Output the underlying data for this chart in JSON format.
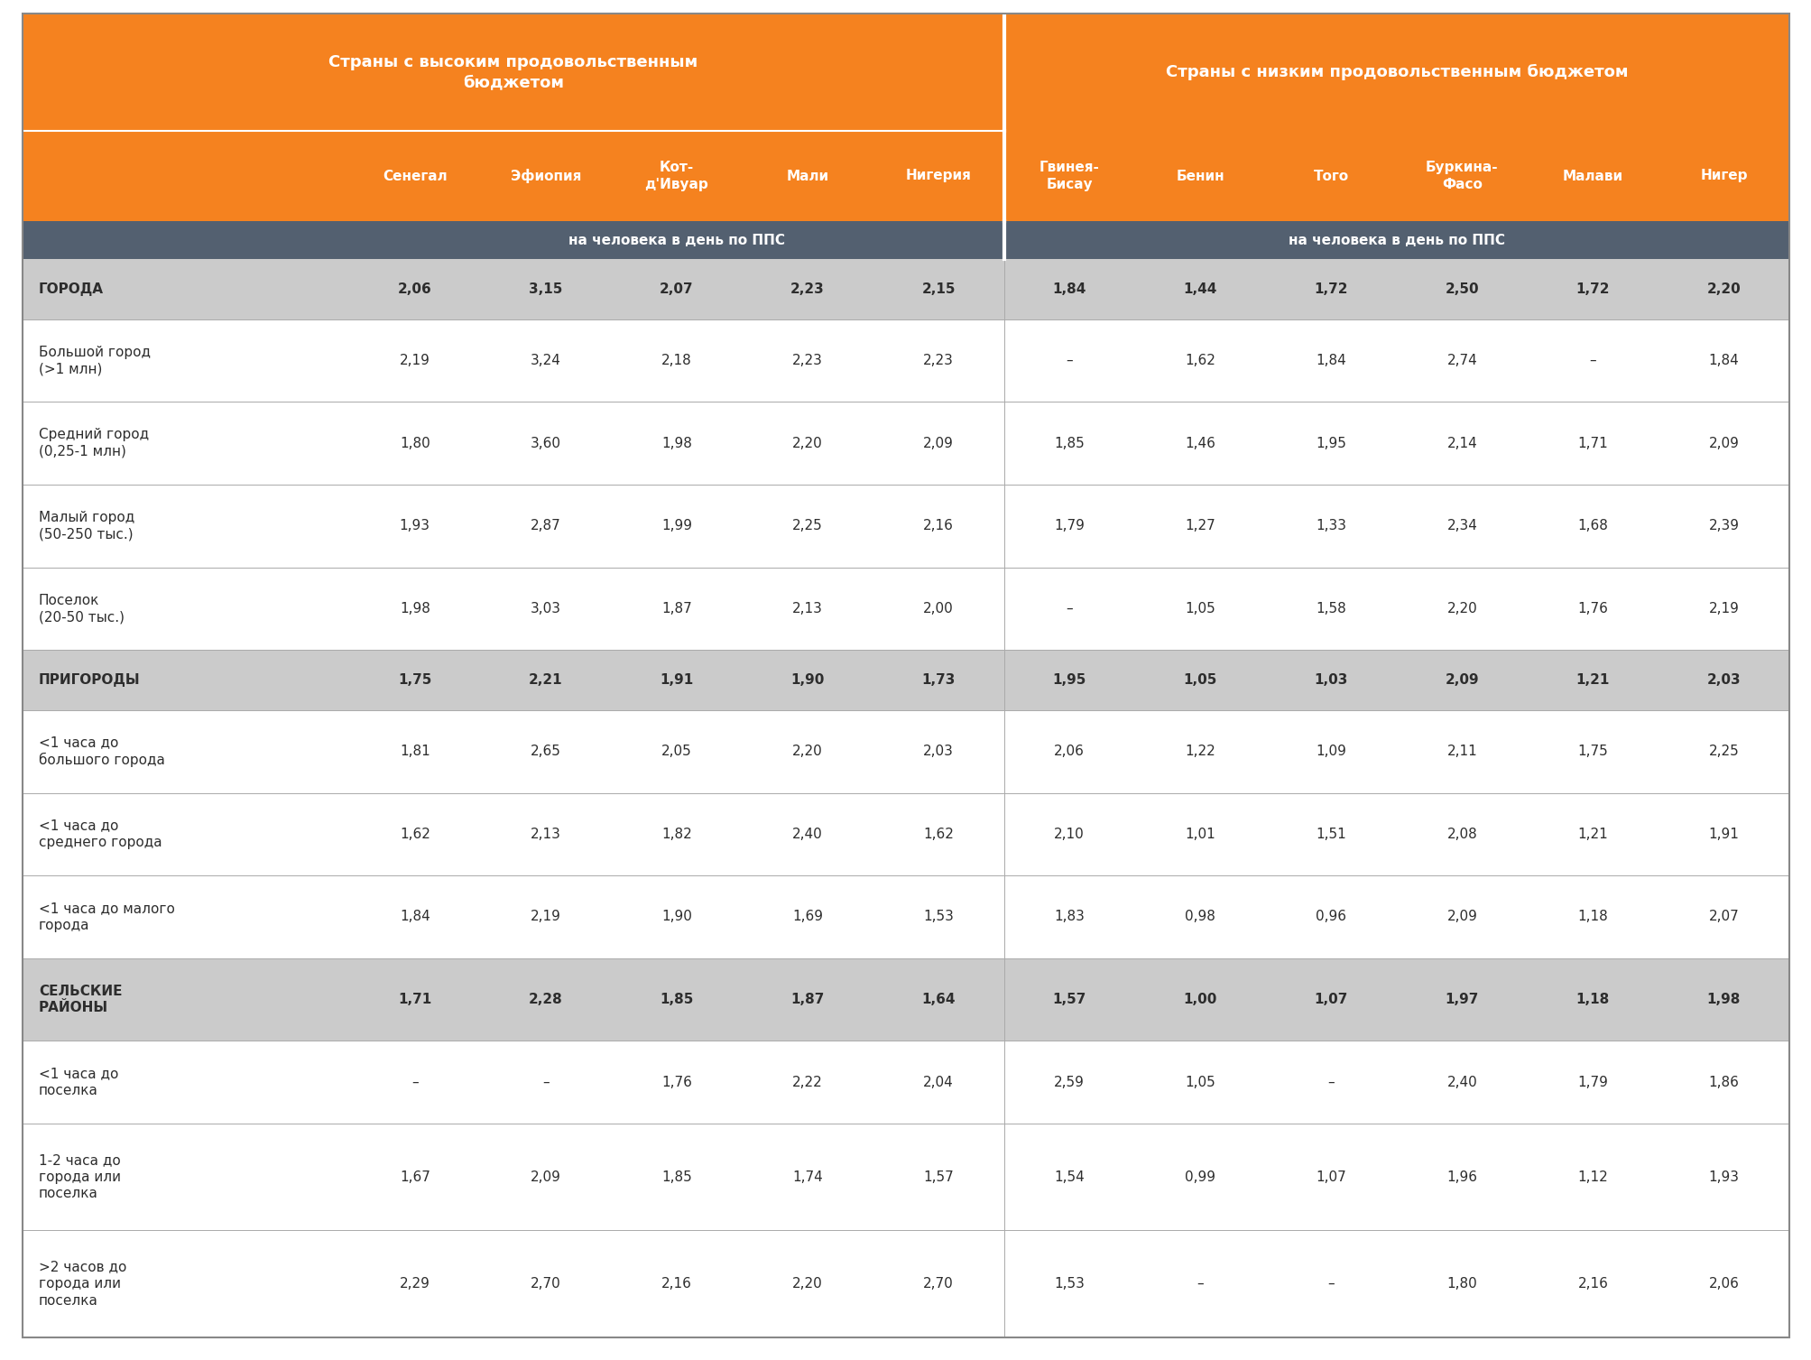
{
  "header1_text": "Страны с высоким продовольственным\nбюджетом",
  "header2_text": "Страны с низким продовольственным бюджетом",
  "subheader_text": "на человека в день по ППС",
  "col_headers": [
    "Сенегал",
    "Эфиопия",
    "Кот-\nд'Ивуар",
    "Мали",
    "Нигерия",
    "Гвинея-\nБисау",
    "Бенин",
    "Того",
    "Буркина-\nФасо",
    "Малави",
    "Нигер"
  ],
  "orange_color": "#F5821F",
  "subhdr_color": "#536070",
  "light_gray_row": "#D3D3D3",
  "white": "#FFFFFF",
  "text_dark": "#2D2D2D",
  "divider_line": "#999999",
  "rows": [
    {
      "label": "ГОРОДА",
      "values": [
        "2,06",
        "3,15",
        "2,07",
        "2,23",
        "2,15",
        "1,84",
        "1,44",
        "1,72",
        "2,50",
        "1,72",
        "2,20"
      ],
      "bold": true,
      "bg": "#CBCBCB"
    },
    {
      "label": "Большой город\n(>1 млн)",
      "values": [
        "2,19",
        "3,24",
        "2,18",
        "2,23",
        "2,23",
        "–",
        "1,62",
        "1,84",
        "2,74",
        "–",
        "1,84"
      ],
      "bold": false,
      "bg": "#FFFFFF"
    },
    {
      "label": "Средний город\n(0,25-1 млн)",
      "values": [
        "1,80",
        "3,60",
        "1,98",
        "2,20",
        "2,09",
        "1,85",
        "1,46",
        "1,95",
        "2,14",
        "1,71",
        "2,09"
      ],
      "bold": false,
      "bg": "#FFFFFF"
    },
    {
      "label": "Малый город\n(50-250 тыс.)",
      "values": [
        "1,93",
        "2,87",
        "1,99",
        "2,25",
        "2,16",
        "1,79",
        "1,27",
        "1,33",
        "2,34",
        "1,68",
        "2,39"
      ],
      "bold": false,
      "bg": "#FFFFFF"
    },
    {
      "label": "Поселок\n(20-50 тыс.)",
      "values": [
        "1,98",
        "3,03",
        "1,87",
        "2,13",
        "2,00",
        "–",
        "1,05",
        "1,58",
        "2,20",
        "1,76",
        "2,19"
      ],
      "bold": false,
      "bg": "#FFFFFF"
    },
    {
      "label": "ПРИГОРОДЫ",
      "values": [
        "1,75",
        "2,21",
        "1,91",
        "1,90",
        "1,73",
        "1,95",
        "1,05",
        "1,03",
        "2,09",
        "1,21",
        "2,03"
      ],
      "bold": true,
      "bg": "#CBCBCB"
    },
    {
      "label": "<1 часа до\nбольшого города",
      "values": [
        "1,81",
        "2,65",
        "2,05",
        "2,20",
        "2,03",
        "2,06",
        "1,22",
        "1,09",
        "2,11",
        "1,75",
        "2,25"
      ],
      "bold": false,
      "bg": "#FFFFFF"
    },
    {
      "label": "<1 часа до\nсреднего города",
      "values": [
        "1,62",
        "2,13",
        "1,82",
        "2,40",
        "1,62",
        "2,10",
        "1,01",
        "1,51",
        "2,08",
        "1,21",
        "1,91"
      ],
      "bold": false,
      "bg": "#FFFFFF"
    },
    {
      "label": "<1 часа до малого\nгорода",
      "values": [
        "1,84",
        "2,19",
        "1,90",
        "1,69",
        "1,53",
        "1,83",
        "0,98",
        "0,96",
        "2,09",
        "1,18",
        "2,07"
      ],
      "bold": false,
      "bg": "#FFFFFF"
    },
    {
      "label": "СЕЛЬСКИЕ\nРАЙОНЫ",
      "values": [
        "1,71",
        "2,28",
        "1,85",
        "1,87",
        "1,64",
        "1,57",
        "1,00",
        "1,07",
        "1,97",
        "1,18",
        "1,98"
      ],
      "bold": true,
      "bg": "#CBCBCB"
    },
    {
      "label": "<1 часа до\nпоселка",
      "values": [
        "–",
        "–",
        "1,76",
        "2,22",
        "2,04",
        "2,59",
        "1,05",
        "–",
        "2,40",
        "1,79",
        "1,86"
      ],
      "bold": false,
      "bg": "#FFFFFF"
    },
    {
      "label": "1-2 часа до\nгорода или\nпоселка",
      "values": [
        "1,67",
        "2,09",
        "1,85",
        "1,74",
        "1,57",
        "1,54",
        "0,99",
        "1,07",
        "1,96",
        "1,12",
        "1,93"
      ],
      "bold": false,
      "bg": "#FFFFFF"
    },
    {
      "label": ">2 часов до\nгорода или\nпоселка",
      "values": [
        "2,29",
        "2,70",
        "2,16",
        "2,20",
        "2,70",
        "1,53",
        "–",
        "–",
        "1,80",
        "2,16",
        "2,06"
      ],
      "bold": false,
      "bg": "#FFFFFF"
    }
  ]
}
